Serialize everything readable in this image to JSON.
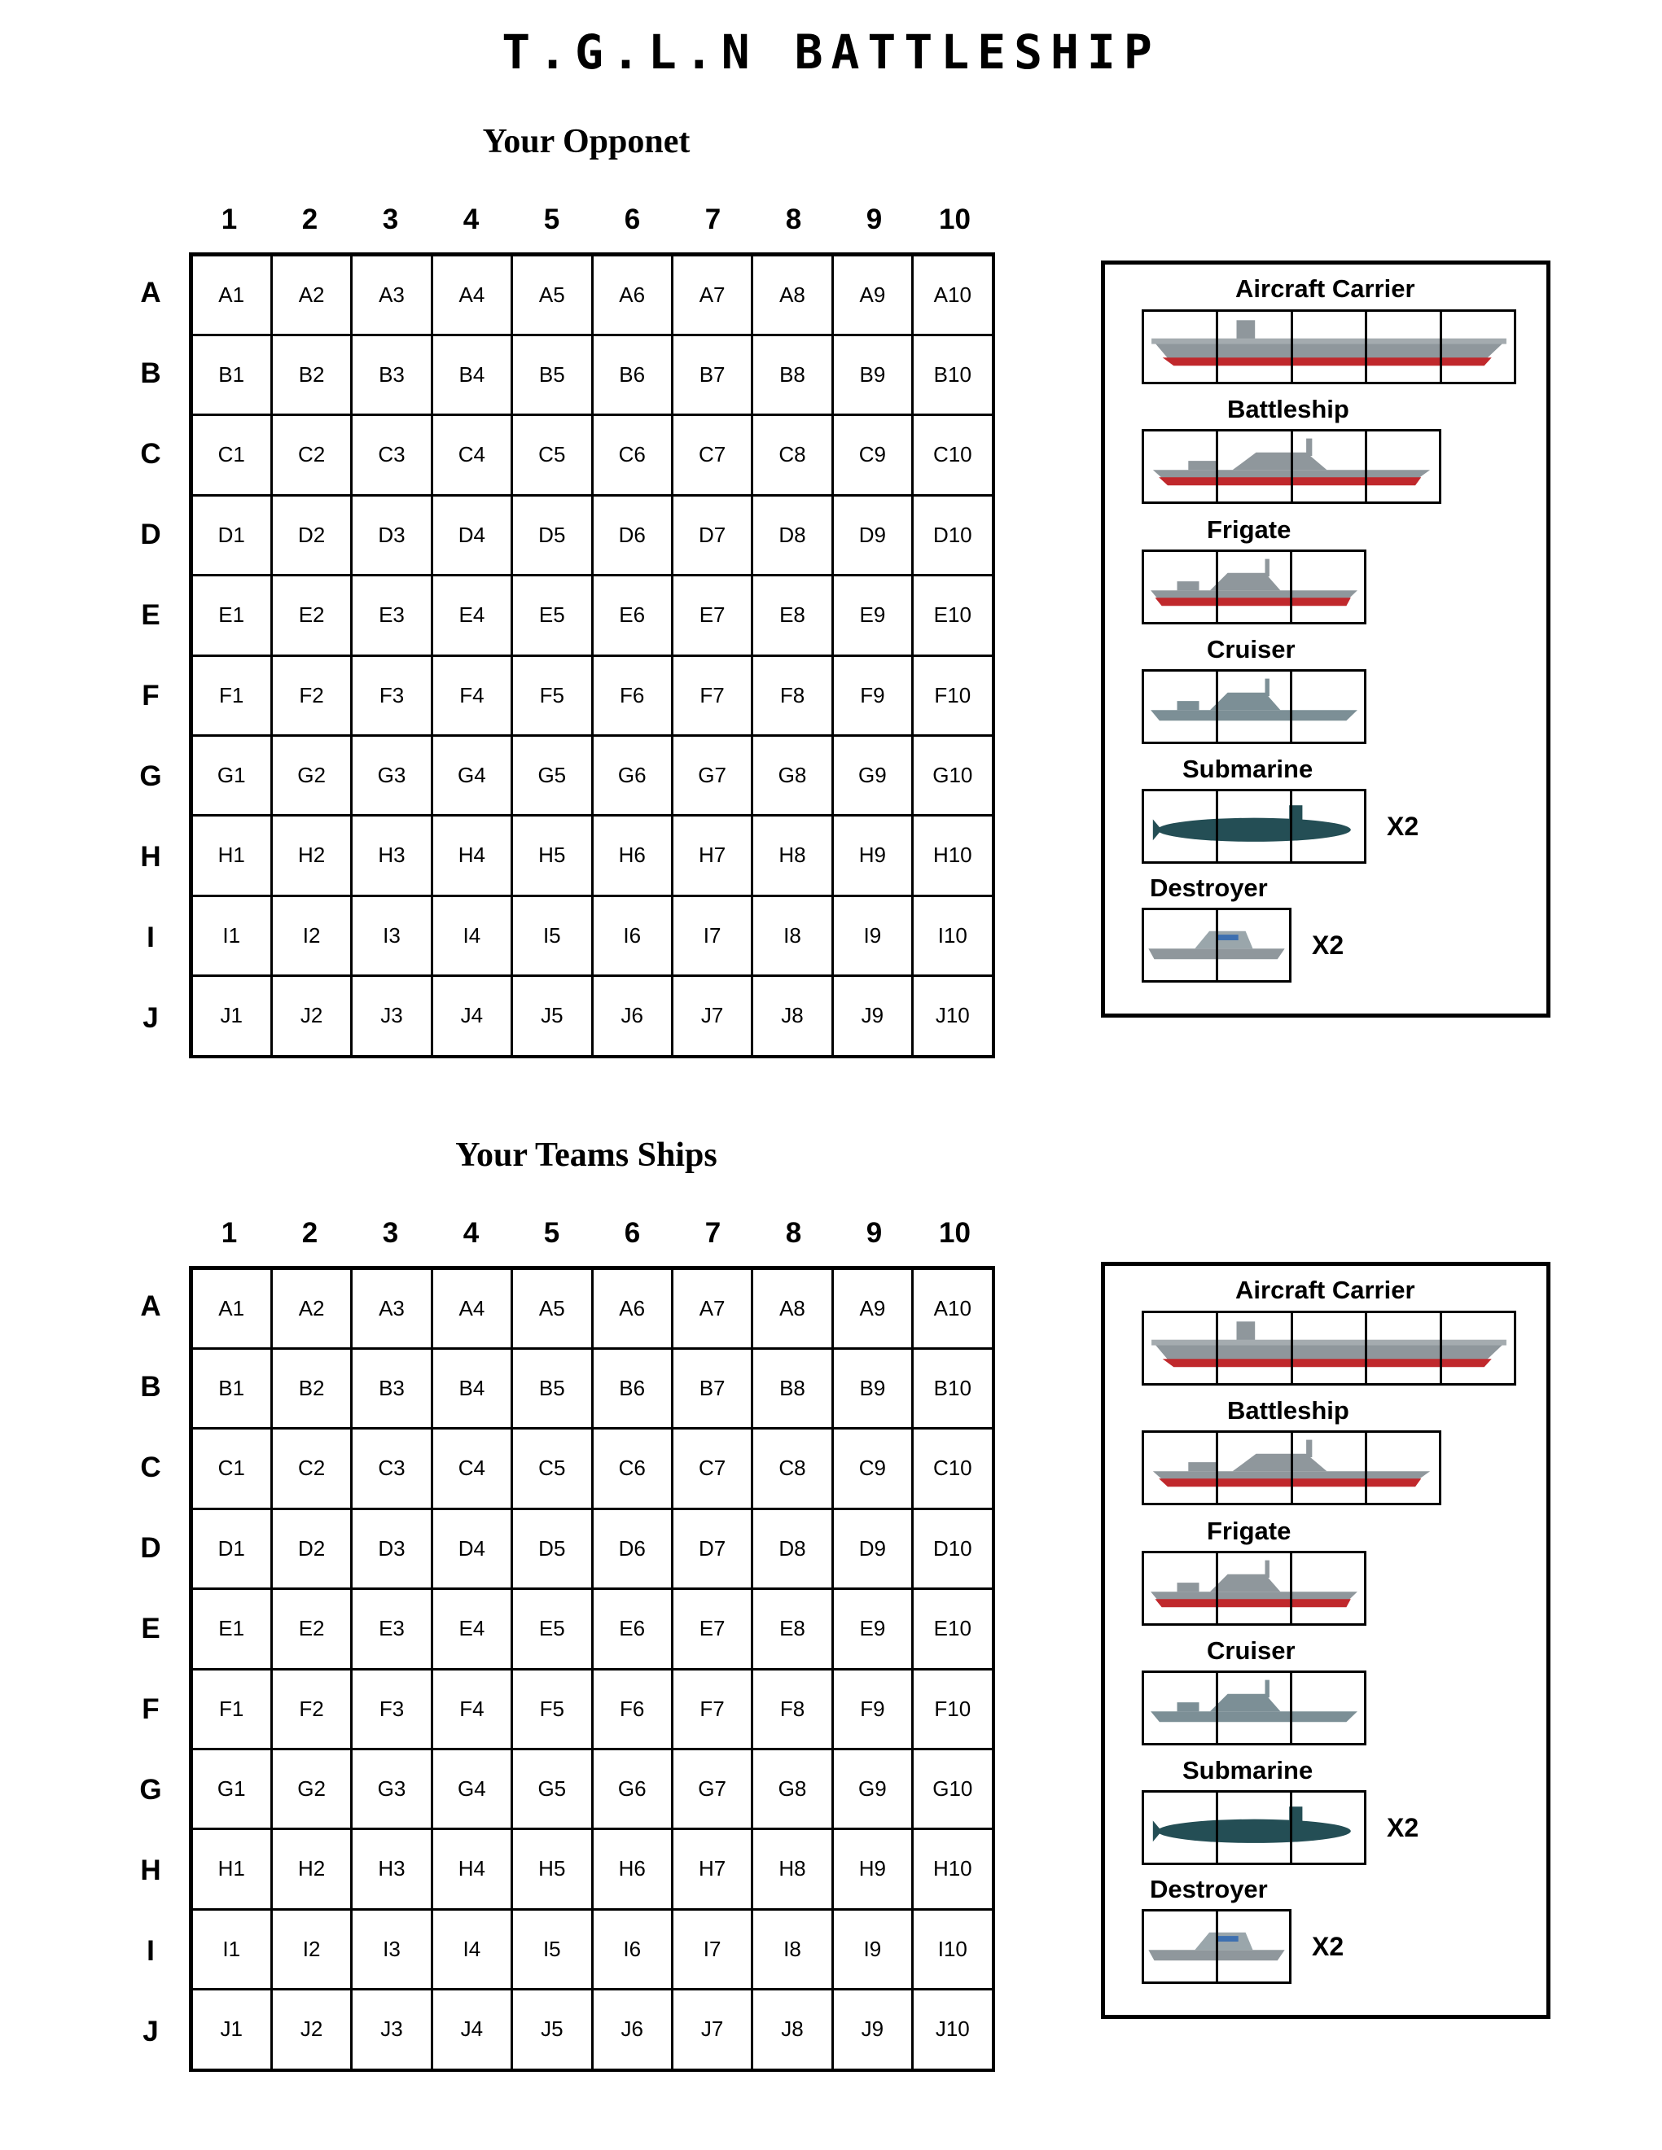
{
  "page_title": "T.G.L.N BATTLESHIP",
  "columns": [
    "1",
    "2",
    "3",
    "4",
    "5",
    "6",
    "7",
    "8",
    "9",
    "10"
  ],
  "rows": [
    "A",
    "B",
    "C",
    "D",
    "E",
    "F",
    "G",
    "H",
    "I",
    "J"
  ],
  "boards": [
    {
      "title": "Your Opponet"
    },
    {
      "title": "Your Teams Ships"
    }
  ],
  "fleet": [
    {
      "name": "Aircraft Carrier",
      "size": 5,
      "icon": "aircraft-carrier-icon",
      "count": ""
    },
    {
      "name": "Battleship",
      "size": 4,
      "icon": "battleship-icon",
      "count": ""
    },
    {
      "name": "Frigate",
      "size": 3,
      "icon": "frigate-icon",
      "count": ""
    },
    {
      "name": "Cruiser",
      "size": 3,
      "icon": "cruiser-icon",
      "count": ""
    },
    {
      "name": "Submarine",
      "size": 3,
      "icon": "submarine-icon",
      "count": "X2"
    },
    {
      "name": "Destroyer",
      "size": 2,
      "icon": "destroyer-icon",
      "count": "X2"
    }
  ],
  "colors": {
    "hull_gray": "#8f979c",
    "hull_red": "#c0282c",
    "submarine": "#244e55",
    "cruiser": "#7c8f96"
  }
}
